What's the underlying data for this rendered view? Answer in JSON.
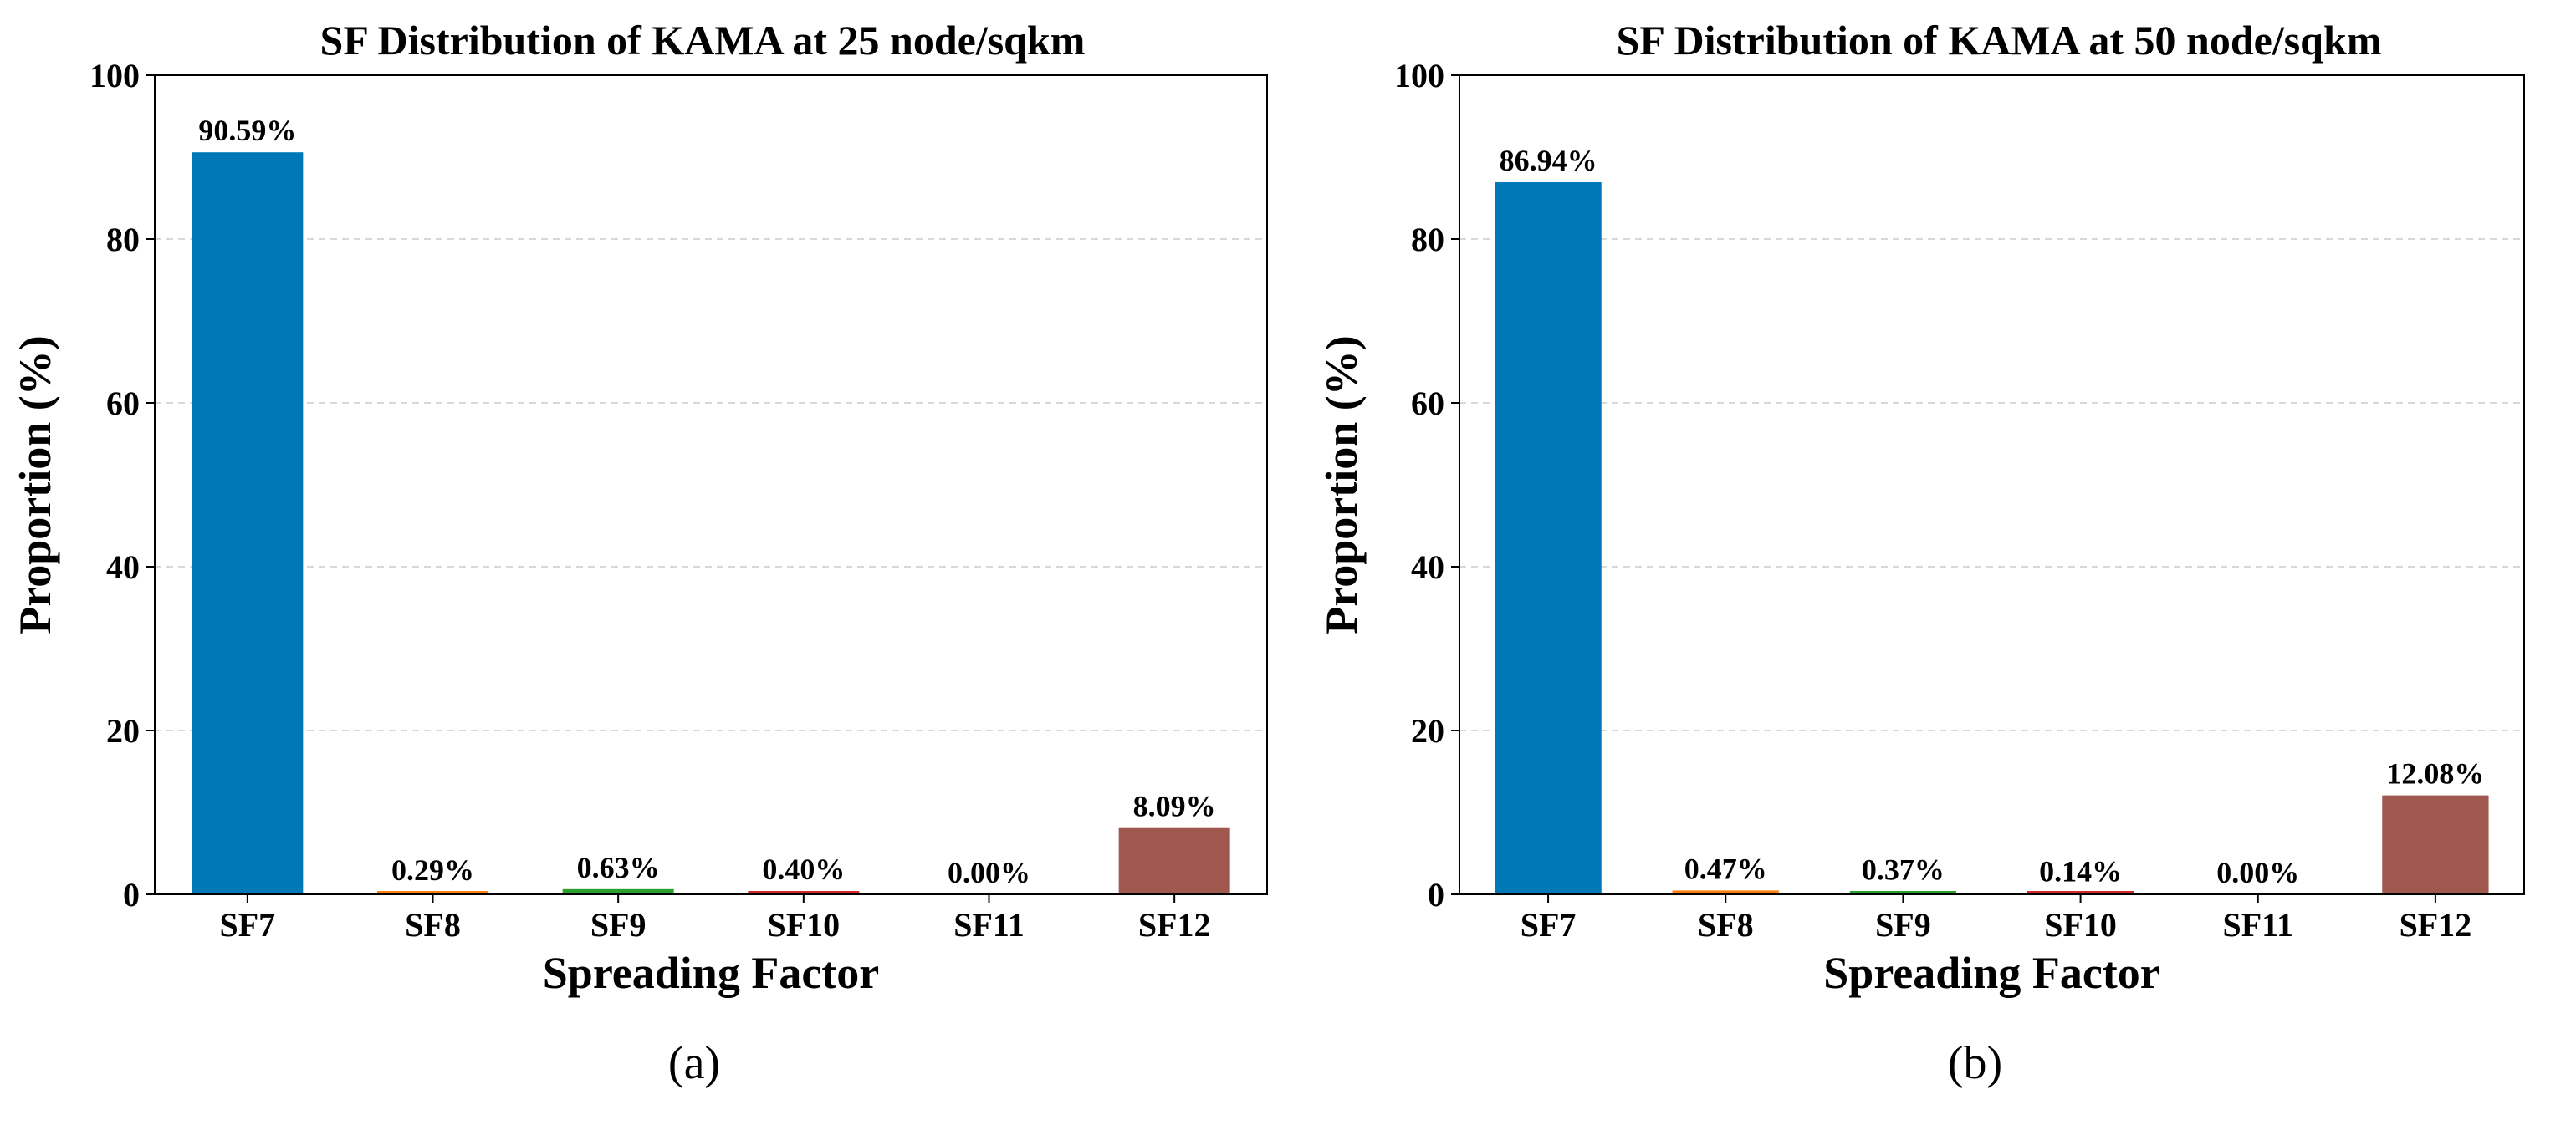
{
  "chart_data": [
    {
      "type": "bar",
      "title": "SF Distribution of KAMA at 25 node/sqkm",
      "xlabel": "Spreading Factor",
      "ylabel": "Proportion (%)",
      "categories": [
        "SF7",
        "SF8",
        "SF9",
        "SF10",
        "SF11",
        "SF12"
      ],
      "values": [
        90.59,
        0.29,
        0.63,
        0.4,
        0.0,
        8.09
      ],
      "value_labels": [
        "90.59%",
        "0.29%",
        "0.63%",
        "0.40%",
        "0.00%",
        "8.09%"
      ],
      "colors": [
        "#0077b6",
        "#ff7f0e",
        "#2ca02c",
        "#d62728",
        "#9467bd",
        "#a0574d"
      ],
      "ylim": [
        0,
        100
      ],
      "yticks": [
        0,
        20,
        40,
        60,
        80,
        100
      ],
      "grid": "horizontal dashed",
      "panel_label": "(a)"
    },
    {
      "type": "bar",
      "title": "SF Distribution of KAMA at 50 node/sqkm",
      "xlabel": "Spreading Factor",
      "ylabel": "Proportion (%)",
      "categories": [
        "SF7",
        "SF8",
        "SF9",
        "SF10",
        "SF11",
        "SF12"
      ],
      "values": [
        86.94,
        0.47,
        0.37,
        0.14,
        0.0,
        12.08
      ],
      "value_labels": [
        "86.94%",
        "0.47%",
        "0.37%",
        "0.14%",
        "0.00%",
        "12.08%"
      ],
      "colors": [
        "#0077b6",
        "#ff7f0e",
        "#2ca02c",
        "#d62728",
        "#9467bd",
        "#a0574d"
      ],
      "ylim": [
        0,
        100
      ],
      "yticks": [
        0,
        20,
        40,
        60,
        80,
        100
      ],
      "grid": "horizontal dashed",
      "panel_label": "(b)"
    }
  ]
}
